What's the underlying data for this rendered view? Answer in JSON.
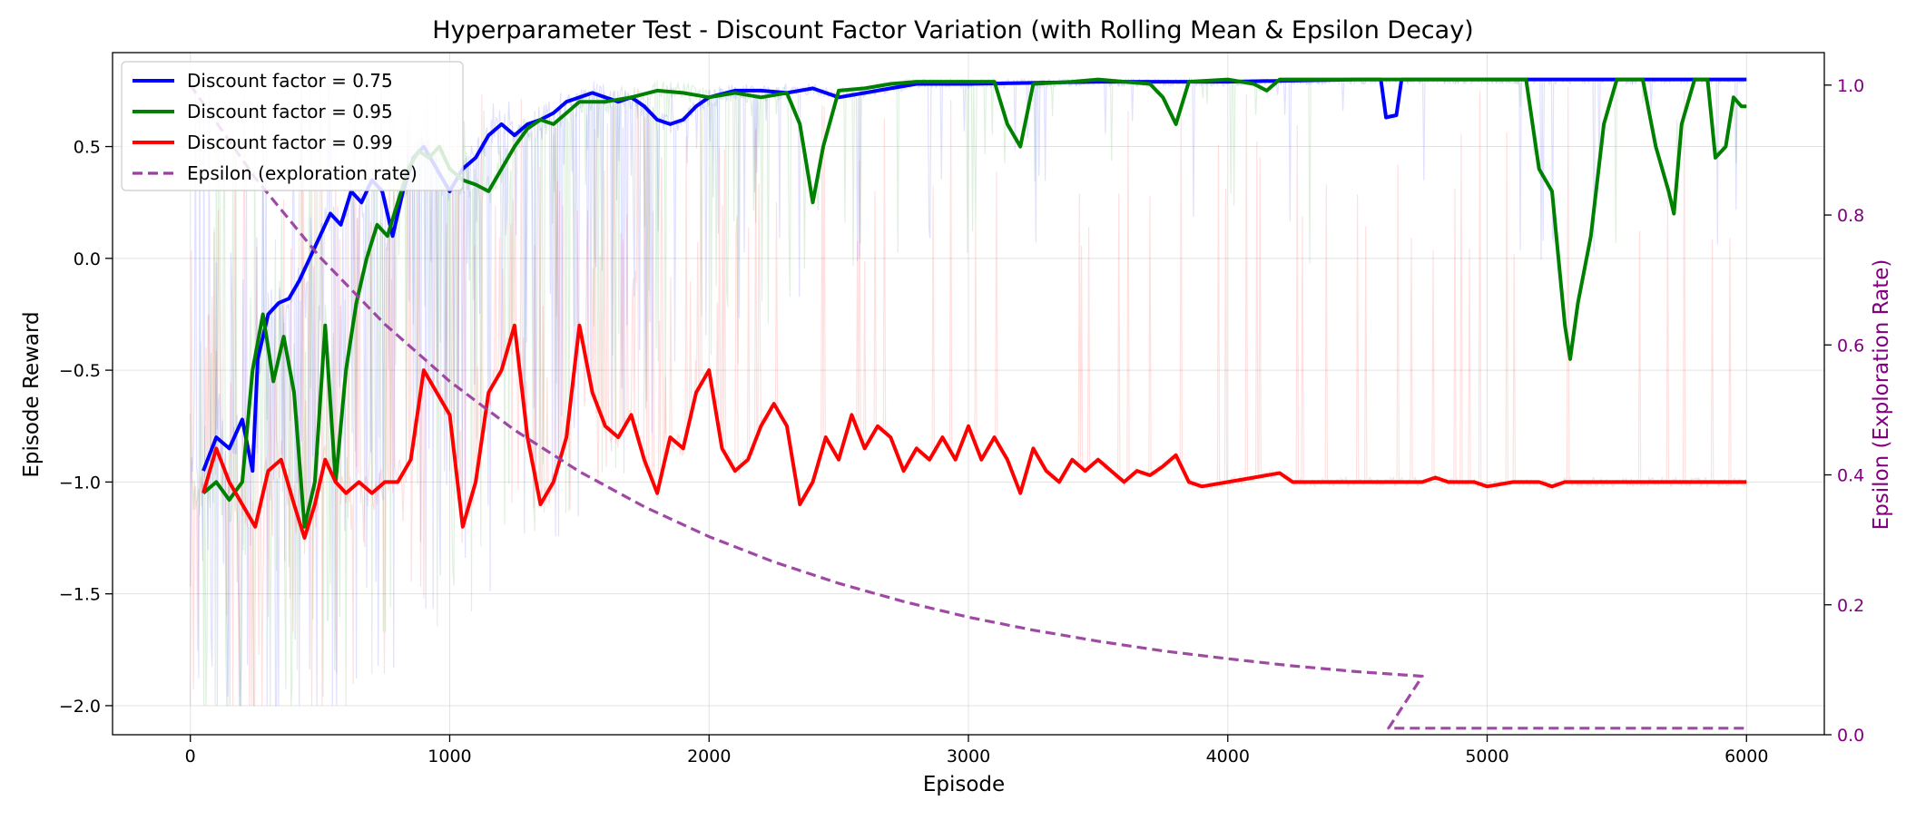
{
  "chart_data": {
    "type": "line",
    "title": "Hyperparameter Test - Discount Factor Variation (with Rolling Mean & Epsilon Decay)",
    "xlabel": "Episode",
    "ylabel": "Episode Reward",
    "y2label": "Epsilon (Exploration Rate)",
    "xlim": [
      -300,
      6300
    ],
    "ylim": [
      -2.13,
      0.92
    ],
    "y2lim": [
      0.0,
      1.05
    ],
    "xticks": [
      0,
      1000,
      2000,
      3000,
      4000,
      5000,
      6000
    ],
    "xtick_labels": [
      "0",
      "1000",
      "2000",
      "3000",
      "4000",
      "5000",
      "6000"
    ],
    "yticks": [
      0.5,
      0.0,
      -0.5,
      -1.0,
      -1.5,
      -2.0
    ],
    "ytick_labels": [
      "0.5",
      "0.0",
      "−0.5",
      "−1.0",
      "−1.5",
      "−2.0"
    ],
    "y2ticks": [
      1.0,
      0.8,
      0.6,
      0.4,
      0.2,
      0.0
    ],
    "y2tick_labels": [
      "1.0",
      "0.8",
      "0.6",
      "0.4",
      "0.2",
      "0.0"
    ],
    "grid": true,
    "legend_position": "top-left",
    "colors": {
      "df075": "#0000ff",
      "df095": "#008000",
      "df099": "#ff0000",
      "epsilon": "#9a3fa0",
      "y2axis": "#800080"
    },
    "series": [
      {
        "name": "Discount factor = 0.75",
        "axis": "left",
        "style": "solid",
        "color_key": "df075",
        "points": [
          [
            50,
            -0.95
          ],
          [
            100,
            -0.8
          ],
          [
            150,
            -0.85
          ],
          [
            200,
            -0.72
          ],
          [
            240,
            -0.95
          ],
          [
            260,
            -0.45
          ],
          [
            300,
            -0.25
          ],
          [
            340,
            -0.2
          ],
          [
            380,
            -0.18
          ],
          [
            420,
            -0.1
          ],
          [
            460,
            0.0
          ],
          [
            500,
            0.1
          ],
          [
            540,
            0.2
          ],
          [
            580,
            0.15
          ],
          [
            620,
            0.3
          ],
          [
            660,
            0.25
          ],
          [
            700,
            0.35
          ],
          [
            740,
            0.3
          ],
          [
            780,
            0.1
          ],
          [
            820,
            0.3
          ],
          [
            860,
            0.45
          ],
          [
            900,
            0.5
          ],
          [
            950,
            0.4
          ],
          [
            1000,
            0.3
          ],
          [
            1050,
            0.4
          ],
          [
            1100,
            0.45
          ],
          [
            1150,
            0.55
          ],
          [
            1200,
            0.6
          ],
          [
            1250,
            0.55
          ],
          [
            1300,
            0.6
          ],
          [
            1350,
            0.62
          ],
          [
            1400,
            0.65
          ],
          [
            1450,
            0.7
          ],
          [
            1500,
            0.72
          ],
          [
            1550,
            0.74
          ],
          [
            1600,
            0.72
          ],
          [
            1650,
            0.7
          ],
          [
            1700,
            0.72
          ],
          [
            1750,
            0.68
          ],
          [
            1800,
            0.62
          ],
          [
            1850,
            0.6
          ],
          [
            1900,
            0.62
          ],
          [
            1950,
            0.68
          ],
          [
            2000,
            0.72
          ],
          [
            2100,
            0.75
          ],
          [
            2200,
            0.75
          ],
          [
            2300,
            0.74
          ],
          [
            2400,
            0.76
          ],
          [
            2500,
            0.72
          ],
          [
            2600,
            0.74
          ],
          [
            2700,
            0.76
          ],
          [
            2800,
            0.78
          ],
          [
            3000,
            0.78
          ],
          [
            3500,
            0.79
          ],
          [
            4000,
            0.79
          ],
          [
            4500,
            0.8
          ],
          [
            4590,
            0.8
          ],
          [
            4610,
            0.63
          ],
          [
            4650,
            0.64
          ],
          [
            4670,
            0.8
          ],
          [
            5000,
            0.8
          ],
          [
            5500,
            0.8
          ],
          [
            6000,
            0.8
          ]
        ]
      },
      {
        "name": "Discount factor = 0.95",
        "axis": "left",
        "style": "solid",
        "color_key": "df095",
        "points": [
          [
            50,
            -1.05
          ],
          [
            100,
            -1.0
          ],
          [
            150,
            -1.08
          ],
          [
            200,
            -1.0
          ],
          [
            240,
            -0.5
          ],
          [
            280,
            -0.25
          ],
          [
            320,
            -0.55
          ],
          [
            360,
            -0.35
          ],
          [
            400,
            -0.6
          ],
          [
            440,
            -1.2
          ],
          [
            480,
            -1.0
          ],
          [
            520,
            -0.3
          ],
          [
            560,
            -1.0
          ],
          [
            600,
            -0.5
          ],
          [
            640,
            -0.2
          ],
          [
            680,
            0.0
          ],
          [
            720,
            0.15
          ],
          [
            760,
            0.1
          ],
          [
            800,
            0.25
          ],
          [
            840,
            0.4
          ],
          [
            880,
            0.48
          ],
          [
            920,
            0.45
          ],
          [
            960,
            0.5
          ],
          [
            1000,
            0.4
          ],
          [
            1050,
            0.35
          ],
          [
            1100,
            0.33
          ],
          [
            1150,
            0.3
          ],
          [
            1200,
            0.4
          ],
          [
            1250,
            0.5
          ],
          [
            1300,
            0.58
          ],
          [
            1350,
            0.62
          ],
          [
            1400,
            0.6
          ],
          [
            1450,
            0.65
          ],
          [
            1500,
            0.7
          ],
          [
            1600,
            0.7
          ],
          [
            1700,
            0.72
          ],
          [
            1800,
            0.75
          ],
          [
            1900,
            0.74
          ],
          [
            2000,
            0.72
          ],
          [
            2100,
            0.74
          ],
          [
            2200,
            0.72
          ],
          [
            2300,
            0.74
          ],
          [
            2350,
            0.6
          ],
          [
            2400,
            0.25
          ],
          [
            2440,
            0.5
          ],
          [
            2500,
            0.75
          ],
          [
            2600,
            0.76
          ],
          [
            2700,
            0.78
          ],
          [
            2800,
            0.79
          ],
          [
            2900,
            0.79
          ],
          [
            3000,
            0.79
          ],
          [
            3100,
            0.79
          ],
          [
            3150,
            0.6
          ],
          [
            3200,
            0.5
          ],
          [
            3250,
            0.78
          ],
          [
            3400,
            0.79
          ],
          [
            3500,
            0.8
          ],
          [
            3600,
            0.79
          ],
          [
            3700,
            0.78
          ],
          [
            3750,
            0.72
          ],
          [
            3800,
            0.6
          ],
          [
            3850,
            0.79
          ],
          [
            4000,
            0.8
          ],
          [
            4100,
            0.78
          ],
          [
            4150,
            0.75
          ],
          [
            4200,
            0.8
          ],
          [
            4500,
            0.8
          ],
          [
            5000,
            0.8
          ],
          [
            5150,
            0.8
          ],
          [
            5200,
            0.4
          ],
          [
            5250,
            0.3
          ],
          [
            5300,
            -0.3
          ],
          [
            5320,
            -0.45
          ],
          [
            5350,
            -0.2
          ],
          [
            5400,
            0.1
          ],
          [
            5450,
            0.6
          ],
          [
            5500,
            0.8
          ],
          [
            5600,
            0.8
          ],
          [
            5650,
            0.5
          ],
          [
            5700,
            0.3
          ],
          [
            5720,
            0.2
          ],
          [
            5750,
            0.6
          ],
          [
            5800,
            0.8
          ],
          [
            5850,
            0.8
          ],
          [
            5880,
            0.45
          ],
          [
            5920,
            0.5
          ],
          [
            5950,
            0.72
          ],
          [
            5980,
            0.68
          ],
          [
            6000,
            0.68
          ]
        ]
      },
      {
        "name": "Discount factor = 0.99",
        "axis": "left",
        "style": "solid",
        "color_key": "df099",
        "points": [
          [
            50,
            -1.05
          ],
          [
            100,
            -0.85
          ],
          [
            150,
            -1.0
          ],
          [
            200,
            -1.1
          ],
          [
            250,
            -1.2
          ],
          [
            300,
            -0.95
          ],
          [
            350,
            -0.9
          ],
          [
            400,
            -1.1
          ],
          [
            440,
            -1.25
          ],
          [
            480,
            -1.1
          ],
          [
            520,
            -0.9
          ],
          [
            560,
            -1.0
          ],
          [
            600,
            -1.05
          ],
          [
            650,
            -1.0
          ],
          [
            700,
            -1.05
          ],
          [
            750,
            -1.0
          ],
          [
            800,
            -1.0
          ],
          [
            850,
            -0.9
          ],
          [
            900,
            -0.5
          ],
          [
            950,
            -0.6
          ],
          [
            1000,
            -0.7
          ],
          [
            1050,
            -1.2
          ],
          [
            1100,
            -1.0
          ],
          [
            1150,
            -0.6
          ],
          [
            1200,
            -0.5
          ],
          [
            1250,
            -0.3
          ],
          [
            1300,
            -0.8
          ],
          [
            1350,
            -1.1
          ],
          [
            1400,
            -1.0
          ],
          [
            1450,
            -0.8
          ],
          [
            1500,
            -0.3
          ],
          [
            1550,
            -0.6
          ],
          [
            1600,
            -0.75
          ],
          [
            1650,
            -0.8
          ],
          [
            1700,
            -0.7
          ],
          [
            1750,
            -0.9
          ],
          [
            1800,
            -1.05
          ],
          [
            1850,
            -0.8
          ],
          [
            1900,
            -0.85
          ],
          [
            1950,
            -0.6
          ],
          [
            2000,
            -0.5
          ],
          [
            2050,
            -0.85
          ],
          [
            2100,
            -0.95
          ],
          [
            2150,
            -0.9
          ],
          [
            2200,
            -0.75
          ],
          [
            2250,
            -0.65
          ],
          [
            2300,
            -0.75
          ],
          [
            2350,
            -1.1
          ],
          [
            2400,
            -1.0
          ],
          [
            2450,
            -0.8
          ],
          [
            2500,
            -0.9
          ],
          [
            2550,
            -0.7
          ],
          [
            2600,
            -0.85
          ],
          [
            2650,
            -0.75
          ],
          [
            2700,
            -0.8
          ],
          [
            2750,
            -0.95
          ],
          [
            2800,
            -0.85
          ],
          [
            2850,
            -0.9
          ],
          [
            2900,
            -0.8
          ],
          [
            2950,
            -0.9
          ],
          [
            3000,
            -0.75
          ],
          [
            3050,
            -0.9
          ],
          [
            3100,
            -0.8
          ],
          [
            3150,
            -0.9
          ],
          [
            3200,
            -1.05
          ],
          [
            3250,
            -0.85
          ],
          [
            3300,
            -0.95
          ],
          [
            3350,
            -1.0
          ],
          [
            3400,
            -0.9
          ],
          [
            3450,
            -0.95
          ],
          [
            3500,
            -0.9
          ],
          [
            3550,
            -0.95
          ],
          [
            3600,
            -1.0
          ],
          [
            3650,
            -0.95
          ],
          [
            3700,
            -0.97
          ],
          [
            3750,
            -0.93
          ],
          [
            3800,
            -0.88
          ],
          [
            3850,
            -1.0
          ],
          [
            3900,
            -1.02
          ],
          [
            4000,
            -1.0
          ],
          [
            4100,
            -0.98
          ],
          [
            4200,
            -0.96
          ],
          [
            4250,
            -1.0
          ],
          [
            4500,
            -1.0
          ],
          [
            4750,
            -1.0
          ],
          [
            4800,
            -0.98
          ],
          [
            4850,
            -1.0
          ],
          [
            4950,
            -1.0
          ],
          [
            5000,
            -1.02
          ],
          [
            5100,
            -1.0
          ],
          [
            5200,
            -1.0
          ],
          [
            5250,
            -1.02
          ],
          [
            5300,
            -1.0
          ],
          [
            6000,
            -1.0
          ]
        ]
      },
      {
        "name": "Epsilon (exploration rate)",
        "axis": "right",
        "style": "dashed",
        "color_key": "epsilon",
        "points": [
          [
            0,
            1.0
          ],
          [
            250,
            0.857
          ],
          [
            500,
            0.735
          ],
          [
            750,
            0.632
          ],
          [
            1000,
            0.544
          ],
          [
            1250,
            0.469
          ],
          [
            1500,
            0.405
          ],
          [
            1750,
            0.351
          ],
          [
            2000,
            0.305
          ],
          [
            2250,
            0.266
          ],
          [
            2500,
            0.233
          ],
          [
            2750,
            0.205
          ],
          [
            3000,
            0.181
          ],
          [
            3250,
            0.161
          ],
          [
            3500,
            0.144
          ],
          [
            3750,
            0.129
          ],
          [
            4000,
            0.117
          ],
          [
            4250,
            0.106
          ],
          [
            4500,
            0.097
          ],
          [
            4750,
            0.09
          ],
          [
            4620,
            0.01
          ],
          [
            4700,
            0.01
          ],
          [
            5000,
            0.01
          ],
          [
            6000,
            0.01
          ]
        ]
      }
    ]
  }
}
